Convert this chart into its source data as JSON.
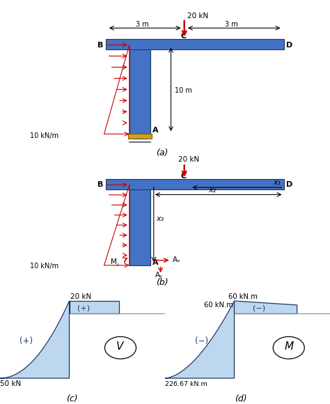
{
  "fig_width": 4.74,
  "fig_height": 5.8,
  "dpi": 100,
  "bg_color": "#ffffff",
  "beam_color": "#4472c4",
  "light_blue": "#bdd7ee",
  "gold": "#c9a227",
  "red": "#cc0000",
  "navy": "#1f3864",
  "gray": "#888888",
  "diag_a_title": "(a)",
  "diag_b_title": "(b)",
  "diag_c_title": "(c)",
  "diag_d_title": "(d)",
  "label_20kN": "20 kN",
  "label_3m_left": "3 m",
  "label_3m_right": "3 m",
  "label_10m": "10 m",
  "label_10kNm": "10 kN/m",
  "label_B": "B",
  "label_C": "C",
  "label_D": "D",
  "label_A": "A",
  "label_x1": "x₁",
  "label_x2": "x₂",
  "label_x3": "x₃",
  "label_MA": "M⁁",
  "label_Ax": "Aₓ",
  "label_Ay": "Aᵧ",
  "label_V": "V",
  "label_M": "M",
  "label_plus": "(+)",
  "label_minus": "(−)",
  "val_50kN": "50 kN",
  "val_20kN": "20 kN",
  "val_226": "226.67 kN.m",
  "val_60_left": "60 kN.m",
  "val_60_top": "60 kN.m"
}
